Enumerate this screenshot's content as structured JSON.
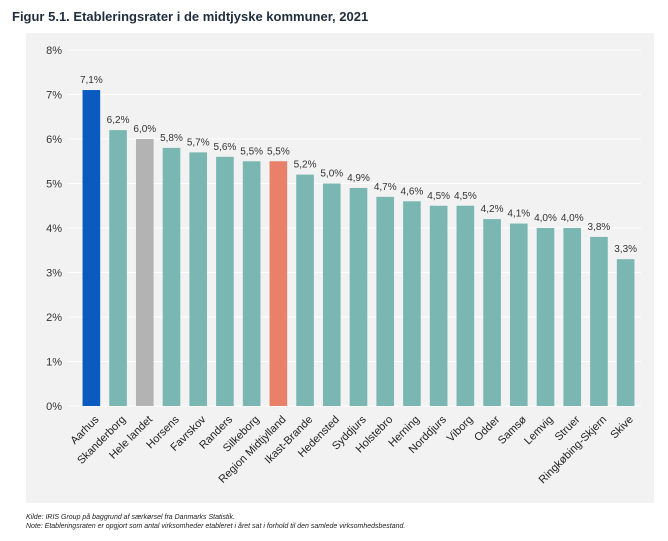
{
  "title": "Figur 5.1. Etableringsrater i de midtjyske kommuner, 2021",
  "footer": {
    "source": "Kilde: IRIS Group på baggrund af særkørsel fra Danmarks Statistik.",
    "note": "Note: Etableringsraten er opgjort som antal virksomheder etableret i året sat i forhold til den samlede virksomhedsbestand."
  },
  "colors": {
    "background": "#f2f2f2",
    "default_bar": "#7ab7b2",
    "aarhus": "#0a5bbf",
    "hele_landet": "#b3b3b3",
    "region": "#e8806a",
    "gridline": "#ffffff"
  },
  "chart_data": {
    "type": "bar",
    "title": "Figur 5.1. Etableringsrater i de midtjyske kommuner, 2021",
    "xlabel": "",
    "ylabel": "",
    "ylim": [
      0,
      8
    ],
    "yticks": [
      "0%",
      "1%",
      "2%",
      "3%",
      "4%",
      "5%",
      "6%",
      "7%",
      "8%"
    ],
    "grid": true,
    "categories": [
      "Aarhus",
      "Skanderborg",
      "Hele landet",
      "Horsens",
      "Favrskov",
      "Randers",
      "Silkeborg",
      "Region Midtjylland",
      "Ikast-Brande",
      "Hedensted",
      "Syddjurs",
      "Holstebro",
      "Herning",
      "Norddjurs",
      "Viborg",
      "Odder",
      "Samsø",
      "Lemvig",
      "Struer",
      "Ringkøbing-Skjern",
      "Skive"
    ],
    "values": [
      7.1,
      6.2,
      6.0,
      5.8,
      5.7,
      5.6,
      5.5,
      5.5,
      5.2,
      5.0,
      4.9,
      4.7,
      4.6,
      4.5,
      4.5,
      4.2,
      4.1,
      4.0,
      4.0,
      3.8,
      3.3
    ],
    "data_labels": [
      "7,1%",
      "6,2%",
      "6,0%",
      "5,8%",
      "5,7%",
      "5,6%",
      "5,5%",
      "5,5%",
      "5,2%",
      "5,0%",
      "4,9%",
      "4,7%",
      "4,6%",
      "4,5%",
      "4,5%",
      "4,2%",
      "4,1%",
      "4,0%",
      "4,0%",
      "3,8%",
      "3,3%"
    ],
    "bar_colors": [
      "#0a5bbf",
      "#7ab7b2",
      "#b3b3b3",
      "#7ab7b2",
      "#7ab7b2",
      "#7ab7b2",
      "#7ab7b2",
      "#e8806a",
      "#7ab7b2",
      "#7ab7b2",
      "#7ab7b2",
      "#7ab7b2",
      "#7ab7b2",
      "#7ab7b2",
      "#7ab7b2",
      "#7ab7b2",
      "#7ab7b2",
      "#7ab7b2",
      "#7ab7b2",
      "#7ab7b2",
      "#7ab7b2"
    ]
  }
}
